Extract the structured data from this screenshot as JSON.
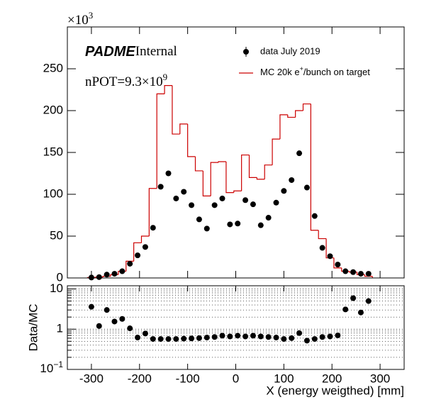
{
  "chart_data": [
    {
      "type": "histogram",
      "multiplier": "×10",
      "multiplier_power": "3",
      "experiment": "PADME",
      "status": "Internal",
      "annotation": "nPOT=9.3×10",
      "annotation_power": "9",
      "xlim": [
        -350,
        350
      ],
      "xticks": [
        -300,
        -200,
        -100,
        0,
        100,
        200,
        300
      ],
      "ylim": [
        0,
        300
      ],
      "yticks": [
        0,
        50,
        100,
        150,
        200,
        250
      ],
      "x": [
        -300,
        -284,
        -268,
        -252,
        -236,
        -220,
        -204,
        -188,
        -172,
        -156,
        -140,
        -124,
        -108,
        -92,
        -76,
        -60,
        -44,
        -28,
        -12,
        4,
        20,
        36,
        52,
        68,
        84,
        100,
        116,
        132,
        148,
        164,
        180,
        196,
        212,
        228,
        244,
        260,
        276
      ],
      "bins": [
        -308,
        -292,
        -276,
        -260,
        -244,
        -228,
        -212,
        -196,
        -180,
        -164,
        -148,
        -132,
        -116,
        -100,
        -84,
        -68,
        -52,
        -36,
        -20,
        -4,
        12,
        28,
        44,
        60,
        76,
        92,
        108,
        124,
        140,
        156,
        172,
        188,
        204,
        220,
        236,
        252,
        268,
        284
      ],
      "legend": "upper right",
      "series": [
        {
          "name": "data July 2019",
          "color": "#000000",
          "values": [
            0.5,
            1,
            4,
            5,
            8,
            17,
            27,
            37,
            60,
            109,
            125,
            95,
            103,
            87,
            70,
            59,
            87,
            95,
            64,
            65,
            93,
            88,
            63,
            72,
            90,
            104,
            117,
            149,
            108,
            74,
            36,
            26,
            16,
            8,
            7,
            5,
            5
          ]
        },
        {
          "name": "MC 20k e+/bunch on target",
          "color": "#cc0000",
          "values": [
            0.5,
            1,
            2,
            4,
            8,
            20,
            42,
            50,
            107,
            220,
            230,
            172,
            184,
            145,
            128,
            98,
            138,
            139,
            102,
            104,
            147,
            120,
            118,
            135,
            166,
            195,
            192,
            200,
            208,
            57,
            47,
            24,
            12,
            8,
            7,
            4,
            2
          ]
        }
      ]
    },
    {
      "type": "scatter",
      "ylabel": "Data/MC",
      "xlabel": "X (energy weigthed) [mm]",
      "xlim": [
        -350,
        350
      ],
      "xticks": [
        -300,
        -200,
        -100,
        0,
        100,
        200,
        300
      ],
      "ylim": [
        0.1,
        12
      ],
      "log_y": true,
      "yticks": [
        {
          "value": 0.1,
          "label": "10",
          "power": "−1"
        },
        1,
        10
      ],
      "yminorticks": [
        0.2,
        0.3,
        0.4,
        0.5,
        0.6,
        0.7,
        0.8,
        0.9,
        2,
        3,
        4,
        5,
        6,
        7,
        8,
        9
      ],
      "grid": "dotted",
      "color": "#000000",
      "x": [
        -300,
        -284,
        -268,
        -252,
        -236,
        -220,
        -204,
        -188,
        -172,
        -156,
        -140,
        -124,
        -108,
        -92,
        -76,
        -60,
        -44,
        -28,
        -12,
        4,
        20,
        36,
        52,
        68,
        84,
        100,
        116,
        132,
        148,
        164,
        180,
        196,
        212,
        228,
        244,
        260,
        276
      ],
      "values": [
        3.6,
        1.2,
        3.0,
        1.55,
        1.8,
        1.05,
        0.62,
        0.78,
        0.57,
        0.57,
        0.57,
        0.57,
        0.58,
        0.59,
        0.6,
        0.62,
        0.64,
        0.69,
        0.66,
        0.69,
        0.66,
        0.69,
        0.66,
        0.64,
        0.62,
        0.57,
        0.6,
        0.8,
        0.52,
        0.57,
        0.64,
        0.66,
        0.7,
        3.1,
        5.9,
        2.6,
        5
      ]
    }
  ]
}
